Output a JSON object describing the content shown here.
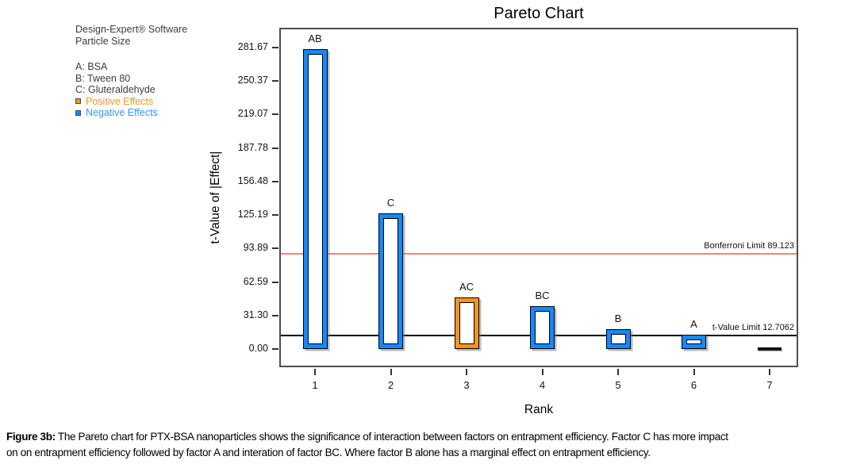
{
  "info_panel": {
    "software_line": "Design-Expert® Software",
    "response_line": "Particle Size",
    "factors": [
      "A: BSA",
      "B: Tween 80",
      "C: Gluteraldehyde"
    ],
    "legend": {
      "positive_label": "Positive Effects",
      "negative_label": "Negative Effects"
    }
  },
  "colors": {
    "positive": "#F7941D",
    "negative": "#1489FC",
    "legend_positive_text": "#F7941D",
    "legend_negative_text": "#2E9BFF",
    "bonferroni_line": "#F98080",
    "tvalue_line": "#000000"
  },
  "chart_data": {
    "type": "bar",
    "title": "Pareto Chart",
    "xlabel": "Rank",
    "ylabel": "t-Value of |Effect|",
    "categories": [
      1,
      2,
      3,
      4,
      5,
      6,
      7
    ],
    "xtick_labels": [
      "1",
      "2",
      "3",
      "4",
      "5",
      "6",
      "7"
    ],
    "ytick_labels": [
      "281.67",
      "250.37",
      "219.07",
      "187.78",
      "156.48",
      "125.19",
      "93.89",
      "62.59",
      "31.30",
      "0.00"
    ],
    "ylim": [
      -18.5,
      298.8
    ],
    "grid": false,
    "legend_position": "outside-top-left",
    "bars": [
      {
        "rank": 1,
        "label": "AB",
        "value": 280.2,
        "sign": "negative"
      },
      {
        "rank": 2,
        "label": "C",
        "value": 126.8,
        "sign": "negative"
      },
      {
        "rank": 3,
        "label": "AC",
        "value": 48.2,
        "sign": "positive"
      },
      {
        "rank": 4,
        "label": "BC",
        "value": 40.0,
        "sign": "negative"
      },
      {
        "rank": 5,
        "label": "B",
        "value": 18.5,
        "sign": "negative"
      },
      {
        "rank": 6,
        "label": "A",
        "value": 13.3,
        "sign": "negative"
      },
      {
        "rank": 7,
        "label": "",
        "value": 0,
        "sign": "none"
      }
    ],
    "reference_lines": [
      {
        "name": "bonferroni-limit",
        "label": "Bonferroni Limit 89.123",
        "value": 89.123
      },
      {
        "name": "t-value-limit",
        "label": "t-Value Limit 12.7062",
        "value": 12.7062
      }
    ]
  },
  "caption": {
    "bold_prefix": "Figure 3b:",
    "line1": " The Pareto chart for PTX-BSA nanoparticles shows the significance of interaction between factors on entrapment efficiency. Factor C has more impact",
    "line2": "on on entrapment efficiency followed by factor A and interation of factor BC. Where factor B alone has a marginal effect on entrapment efficiency."
  }
}
